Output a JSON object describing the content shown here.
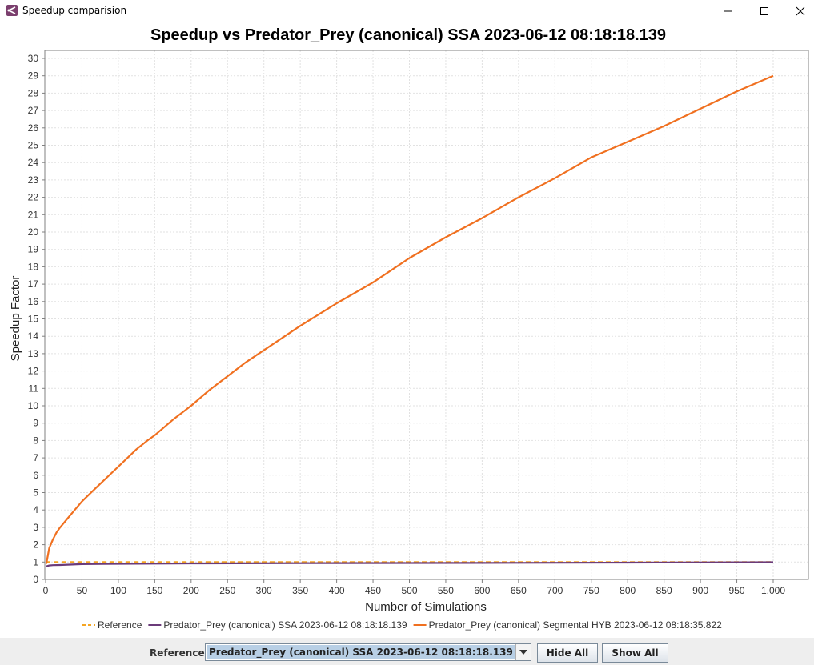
{
  "window": {
    "title": "Speedup comparision"
  },
  "chart_data": {
    "type": "line",
    "title": "Speedup vs Predator_Prey (canonical) SSA 2023-06-12 08:18:18.139",
    "xlabel": "Number of Simulations",
    "ylabel": "Speedup Factor",
    "xlim": [
      0,
      1000
    ],
    "ylim": [
      0,
      30
    ],
    "xticks": [
      "0",
      "50",
      "100",
      "150",
      "200",
      "250",
      "300",
      "350",
      "400",
      "450",
      "500",
      "550",
      "600",
      "650",
      "700",
      "750",
      "800",
      "850",
      "900",
      "950",
      "1,000"
    ],
    "yticks": [
      "0",
      "1",
      "2",
      "3",
      "4",
      "5",
      "6",
      "7",
      "8",
      "9",
      "10",
      "11",
      "12",
      "13",
      "14",
      "15",
      "16",
      "17",
      "18",
      "19",
      "20",
      "21",
      "22",
      "23",
      "24",
      "25",
      "26",
      "27",
      "28",
      "29",
      "30"
    ],
    "grid": true,
    "legend_position": "bottom",
    "series": [
      {
        "name": "Reference",
        "color": "#f5a623",
        "style": "dashed",
        "x": [
          0,
          1000
        ],
        "y": [
          1,
          1
        ]
      },
      {
        "name": "Predator_Prey (canonical) SSA 2023-06-12 08:18:18.139",
        "color": "#6b3b7a",
        "style": "solid",
        "x": [
          1,
          5,
          10,
          20,
          50,
          100,
          200,
          400,
          600,
          800,
          1000
        ],
        "y": [
          0.75,
          0.8,
          0.82,
          0.83,
          0.88,
          0.9,
          0.92,
          0.94,
          0.95,
          0.97,
          0.99
        ]
      },
      {
        "name": "Predator_Prey (canonical) Segmental HYB 2023-06-12 08:18:35.822",
        "color": "#f07020",
        "style": "solid",
        "x": [
          1,
          5,
          10,
          15,
          20,
          30,
          40,
          50,
          60,
          75,
          100,
          125,
          140,
          150,
          175,
          200,
          225,
          250,
          275,
          300,
          350,
          400,
          450,
          500,
          550,
          600,
          650,
          700,
          750,
          800,
          850,
          900,
          950,
          1000
        ],
        "y": [
          0.9,
          1.8,
          2.3,
          2.7,
          3.0,
          3.5,
          4.0,
          4.5,
          4.9,
          5.5,
          6.5,
          7.5,
          8.0,
          8.3,
          9.2,
          10.0,
          10.9,
          11.7,
          12.5,
          13.2,
          14.6,
          15.9,
          17.1,
          18.5,
          19.7,
          20.8,
          22.0,
          23.1,
          24.3,
          25.2,
          26.1,
          27.1,
          28.1,
          29.0
        ]
      }
    ]
  },
  "controls": {
    "reference_label": "Reference:",
    "reference_value": "Predator_Prey (canonical) SSA 2023-06-12 08:18:18.139",
    "hide_all": "Hide All",
    "show_all": "Show All"
  }
}
